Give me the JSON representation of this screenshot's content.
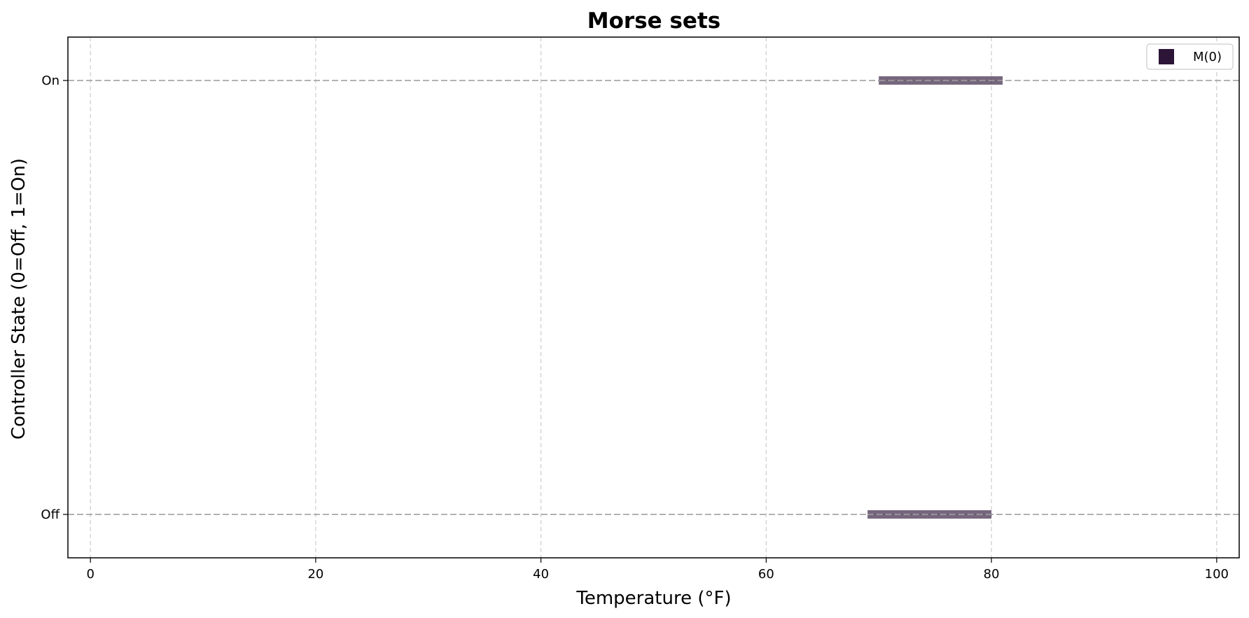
{
  "chart_data": {
    "type": "bar",
    "orientation": "horizontal-interval",
    "title": "Morse sets",
    "xlabel": "Temperature (°F)",
    "ylabel": "Controller State (0=Off, 1=On)",
    "xlim": [
      -2,
      102
    ],
    "ylim": [
      -0.1,
      1.1
    ],
    "x_ticks": [
      0,
      20,
      40,
      60,
      80,
      100
    ],
    "y_ticks": [
      {
        "value": 0,
        "label": "Off"
      },
      {
        "value": 1,
        "label": "On"
      }
    ],
    "grid": true,
    "legend_position": "top-right",
    "series": [
      {
        "name": "M(0)",
        "color": "#2d1538",
        "intervals": [
          {
            "y": 1,
            "x_start": 70,
            "x_end": 81
          },
          {
            "y": 0,
            "x_start": 69,
            "x_end": 80
          }
        ]
      }
    ]
  }
}
